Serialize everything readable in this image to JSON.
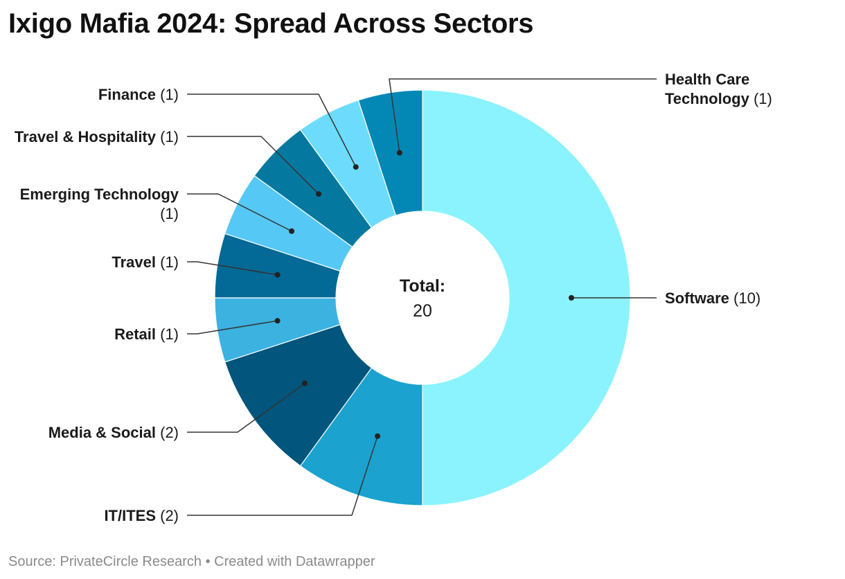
{
  "title": "Ixigo Mafia 2024: Spread Across Sectors",
  "footer": {
    "source": "Source: PrivateCircle Research",
    "separator": "•",
    "credit": "Created with Datawrapper"
  },
  "center": {
    "label": "Total:",
    "value": "20"
  },
  "chart_data": {
    "type": "pie",
    "variant": "donut",
    "title": "Ixigo Mafia 2024: Spread Across Sectors",
    "total": 20,
    "slices": [
      {
        "name": "Software",
        "value": 10,
        "color": "#8af3fd",
        "label_lines": [
          "Software"
        ],
        "count": "(10)"
      },
      {
        "name": "IT/ITES",
        "value": 2,
        "color": "#1ba2cf",
        "label_lines": [
          "IT/ITES"
        ],
        "count": "(2)"
      },
      {
        "name": "Media & Social",
        "value": 2,
        "color": "#02557c",
        "label_lines": [
          "Media & Social"
        ],
        "count": "(2)"
      },
      {
        "name": "Retail",
        "value": 1,
        "color": "#3cb2e0",
        "label_lines": [
          "Retail"
        ],
        "count": "(1)"
      },
      {
        "name": "Travel",
        "value": 1,
        "color": "#036996",
        "label_lines": [
          "Travel"
        ],
        "count": "(1)"
      },
      {
        "name": "Emerging Technology",
        "value": 1,
        "color": "#56c8f5",
        "label_lines": [
          "Emerging Technology"
        ],
        "count": "(1)"
      },
      {
        "name": "Travel & Hospitality",
        "value": 1,
        "color": "#04789f",
        "label_lines": [
          "Travel & Hospitality"
        ],
        "count": "(1)"
      },
      {
        "name": "Finance",
        "value": 1,
        "color": "#6ddcfc",
        "label_lines": [
          "Finance"
        ],
        "count": "(1)"
      },
      {
        "name": "Health Care Technology",
        "value": 1,
        "color": "#0388b5",
        "label_lines": [
          "Health Care",
          "Technology"
        ],
        "count": "(1)"
      }
    ]
  }
}
